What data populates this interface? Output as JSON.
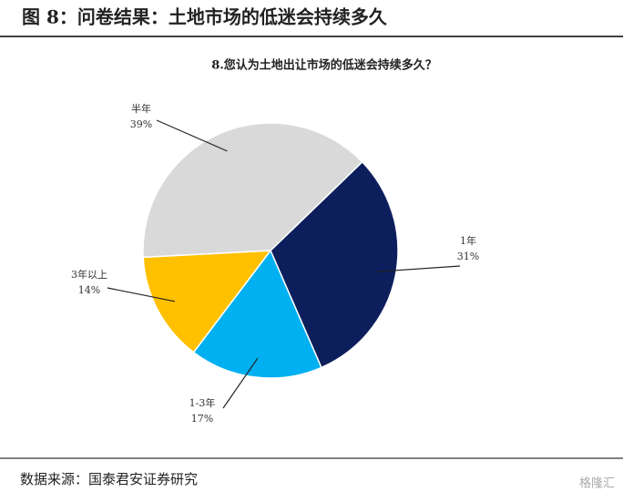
{
  "header": {
    "title": "图 8：问卷结果：土地市场的低迷会持续多久"
  },
  "chart_data": {
    "type": "pie",
    "title": "8.您认为土地出让市场的低迷会持续多久？",
    "categories": [
      "1年",
      "1-3年",
      "3年以上",
      "半年"
    ],
    "values": [
      31,
      17,
      14,
      39
    ],
    "value_labels": [
      "31%",
      "17%",
      "14%",
      "39%"
    ],
    "colors": [
      "#0c1f5c",
      "#00b0f0",
      "#ffc000",
      "#d9d9d9"
    ]
  },
  "footer": {
    "source": "数据来源：国泰君安证券研究",
    "watermark": "格隆汇"
  }
}
